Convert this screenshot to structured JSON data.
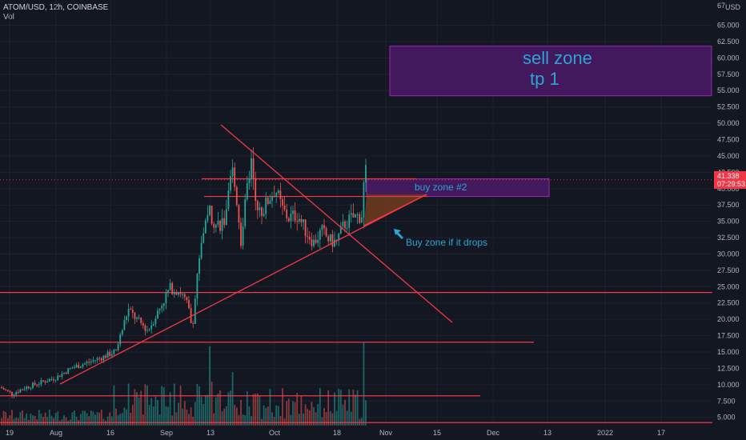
{
  "header": {
    "symbol": "ATOM/USD, 12h, COINBASE",
    "volume_label": "Vol"
  },
  "chart_data": {
    "type": "candlestick",
    "ylim": [
      3.5,
      67.5
    ],
    "y_ticks": [
      "65.000",
      "62.500",
      "60.000",
      "57.500",
      "55.000",
      "52.500",
      "50.000",
      "47.500",
      "45.000",
      "42.500",
      "40.000",
      "37.500",
      "35.000",
      "32.500",
      "30.000",
      "27.500",
      "25.000",
      "22.500",
      "20.000",
      "17.500",
      "15.000",
      "12.500",
      "10.000",
      "7.500",
      "5.000"
    ],
    "y_tick_values": [
      65,
      62.5,
      60,
      57.5,
      55,
      52.5,
      50,
      47.5,
      45,
      42.5,
      40,
      37.5,
      35,
      32.5,
      30,
      27.5,
      25,
      22.5,
      20,
      17.5,
      15,
      12.5,
      10,
      7.5,
      5
    ],
    "top_tick": "67",
    "currency": "USD",
    "x_ticks": [
      "19",
      "Aug",
      "16",
      "Sep",
      "13",
      "Oct",
      "18",
      "Nov",
      "15",
      "Dec",
      "13",
      "2022",
      "17"
    ],
    "current_price": "41.338",
    "countdown": "07:29:53",
    "annotations": {
      "sell_zone_line1": "sell zone",
      "sell_zone_line2": "tp 1",
      "buy_zone_2": "buy zone #2",
      "buy_zone_drop": "Buy zone if it drops"
    },
    "horizontal_levels": [
      41.5,
      38.8,
      24.1,
      16.5,
      8.3,
      4.2
    ],
    "sell_zone_range": [
      54.2,
      61.8
    ],
    "buy_zone_2_range": [
      38.8,
      41.5
    ],
    "colors": {
      "up": "#26a69a",
      "down": "#ef5350",
      "level": "#f23645",
      "sell_zone": "#4a1a66",
      "buy_zone": "#4a1a66",
      "triangle": "#6b3a1e",
      "annotation": "#2ea3d6",
      "price_tag": "#f23645"
    }
  }
}
